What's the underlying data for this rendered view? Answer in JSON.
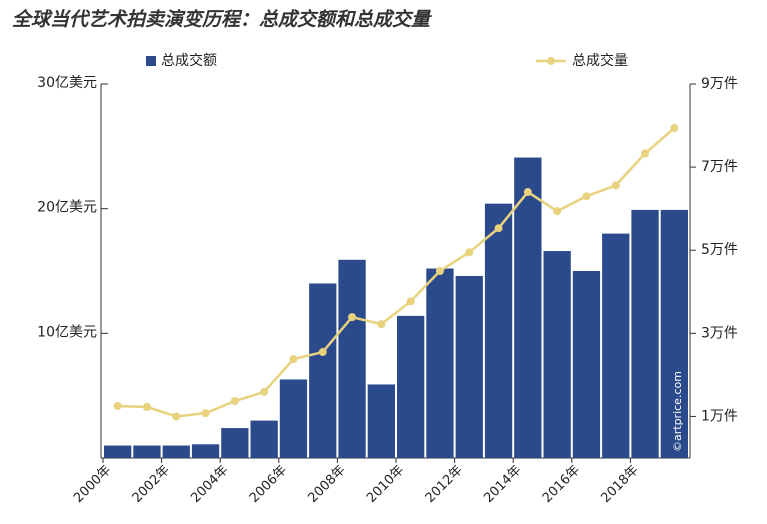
{
  "chart_data": {
    "type": "bar-line",
    "title": "全球当代艺术拍卖演变历程：总成交额和总成交量",
    "watermark": "©artprice.com",
    "categories": [
      "2000年",
      null,
      "2002年",
      null,
      "2004年",
      null,
      "2006年",
      null,
      "2008年",
      null,
      "2010年",
      null,
      "2012年",
      null,
      "2014年",
      null,
      "2016年",
      null,
      "2018年",
      null
    ],
    "series": [
      {
        "name": "总成交额",
        "type": "bar",
        "axis": "y",
        "color": "#2b4a8c",
        "values": [
          1.0,
          1.0,
          1.0,
          1.1,
          2.4,
          3.0,
          6.3,
          14.0,
          15.9,
          5.9,
          11.4,
          15.2,
          14.6,
          20.4,
          24.1,
          16.6,
          15.0,
          18.0,
          19.9,
          19.9
        ]
      },
      {
        "name": "总成交量",
        "type": "line",
        "axis": "y2",
        "color": "#e8d27e",
        "values": [
          1.25,
          1.23,
          1.0,
          1.08,
          1.37,
          1.59,
          2.38,
          2.55,
          3.39,
          3.22,
          3.77,
          4.5,
          4.95,
          5.53,
          6.4,
          5.94,
          6.3,
          6.56,
          7.33,
          7.94
        ]
      }
    ],
    "ylim": [
      0,
      30
    ],
    "yticks": [
      {
        "value": 10,
        "label": "10亿美元"
      },
      {
        "value": 20,
        "label": "20亿美元"
      },
      {
        "value": 30,
        "label": "30亿美元"
      }
    ],
    "y2lim": [
      0,
      9
    ],
    "y2ticks": [
      {
        "value": 1,
        "label": "1万件"
      },
      {
        "value": 3,
        "label": "3万件"
      },
      {
        "value": 5,
        "label": "5万件"
      },
      {
        "value": 7,
        "label": "7万件"
      },
      {
        "value": 9,
        "label": "9万件"
      }
    ]
  }
}
